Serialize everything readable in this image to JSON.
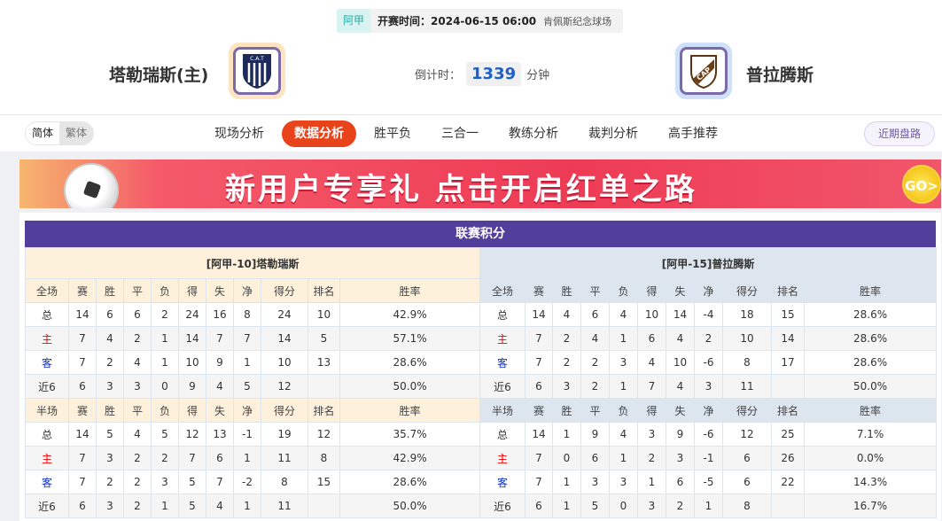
{
  "match": {
    "league": "阿甲",
    "kickoff": "开赛时间：2024-06-15 06:00",
    "venue": "肯佩斯纪念球场",
    "home_team": "塔勒瑞斯(主)",
    "away_team": "普拉腾斯",
    "home_logo_text": "C.A.T",
    "away_logo_text": "CAP",
    "countdown_label": "倒计时：",
    "countdown_value": "1339",
    "countdown_unit": "分钟"
  },
  "nav": {
    "lang": [
      "简体",
      "繁体"
    ],
    "tabs": [
      "现场分析",
      "数据分析",
      "胜平负",
      "三合一",
      "教练分析",
      "裁判分析",
      "高手推荐"
    ],
    "active_tab": "数据分析",
    "recent": "近期盘路"
  },
  "banner": {
    "text": "新用户专享礼  点击开启红单之路",
    "button": "GO>"
  },
  "standings": {
    "title": "联赛积分",
    "columns_full": [
      "全场",
      "赛",
      "胜",
      "平",
      "负",
      "得",
      "失",
      "净",
      "得分",
      "排名",
      "胜率"
    ],
    "columns_half": [
      "半场",
      "赛",
      "胜",
      "平",
      "负",
      "得",
      "失",
      "净",
      "得分",
      "排名",
      "胜率"
    ],
    "home": {
      "header": "[阿甲-10]塔勒瑞斯",
      "full": [
        [
          "总",
          "14",
          "6",
          "6",
          "2",
          "24",
          "16",
          "8",
          "24",
          "10",
          "42.9%"
        ],
        [
          "主",
          "7",
          "4",
          "2",
          "1",
          "14",
          "7",
          "7",
          "14",
          "5",
          "57.1%"
        ],
        [
          "客",
          "7",
          "2",
          "4",
          "1",
          "10",
          "9",
          "1",
          "10",
          "13",
          "28.6%"
        ],
        [
          "近6",
          "6",
          "3",
          "3",
          "0",
          "9",
          "4",
          "5",
          "12",
          "",
          "50.0%"
        ]
      ],
      "half": [
        [
          "总",
          "14",
          "5",
          "4",
          "5",
          "12",
          "13",
          "-1",
          "19",
          "12",
          "35.7%"
        ],
        [
          "主",
          "7",
          "3",
          "2",
          "2",
          "7",
          "6",
          "1",
          "11",
          "8",
          "42.9%"
        ],
        [
          "客",
          "7",
          "2",
          "2",
          "3",
          "5",
          "7",
          "-2",
          "8",
          "15",
          "28.6%"
        ],
        [
          "近6",
          "6",
          "3",
          "2",
          "1",
          "5",
          "4",
          "1",
          "11",
          "",
          "50.0%"
        ]
      ]
    },
    "away": {
      "header": "[阿甲-15]普拉腾斯",
      "full": [
        [
          "总",
          "14",
          "4",
          "6",
          "4",
          "10",
          "14",
          "-4",
          "18",
          "15",
          "28.6%"
        ],
        [
          "主",
          "7",
          "2",
          "4",
          "1",
          "6",
          "4",
          "2",
          "10",
          "14",
          "28.6%"
        ],
        [
          "客",
          "7",
          "2",
          "2",
          "3",
          "4",
          "10",
          "-6",
          "8",
          "17",
          "28.6%"
        ],
        [
          "近6",
          "6",
          "3",
          "2",
          "1",
          "7",
          "4",
          "3",
          "11",
          "",
          "50.0%"
        ]
      ],
      "half": [
        [
          "总",
          "14",
          "1",
          "9",
          "4",
          "3",
          "9",
          "-6",
          "12",
          "25",
          "7.1%"
        ],
        [
          "主",
          "7",
          "0",
          "6",
          "1",
          "2",
          "3",
          "-1",
          "6",
          "26",
          "0.0%"
        ],
        [
          "客",
          "7",
          "1",
          "3",
          "3",
          "1",
          "6",
          "-5",
          "6",
          "22",
          "14.3%"
        ],
        [
          "近6",
          "6",
          "1",
          "5",
          "0",
          "3",
          "2",
          "1",
          "8",
          "",
          "16.7%"
        ]
      ]
    }
  },
  "colors": {
    "accent": "#e8431a",
    "title_bar": "#523f9c",
    "home_red": "#ee0000",
    "away_blue": "#1030c8"
  }
}
